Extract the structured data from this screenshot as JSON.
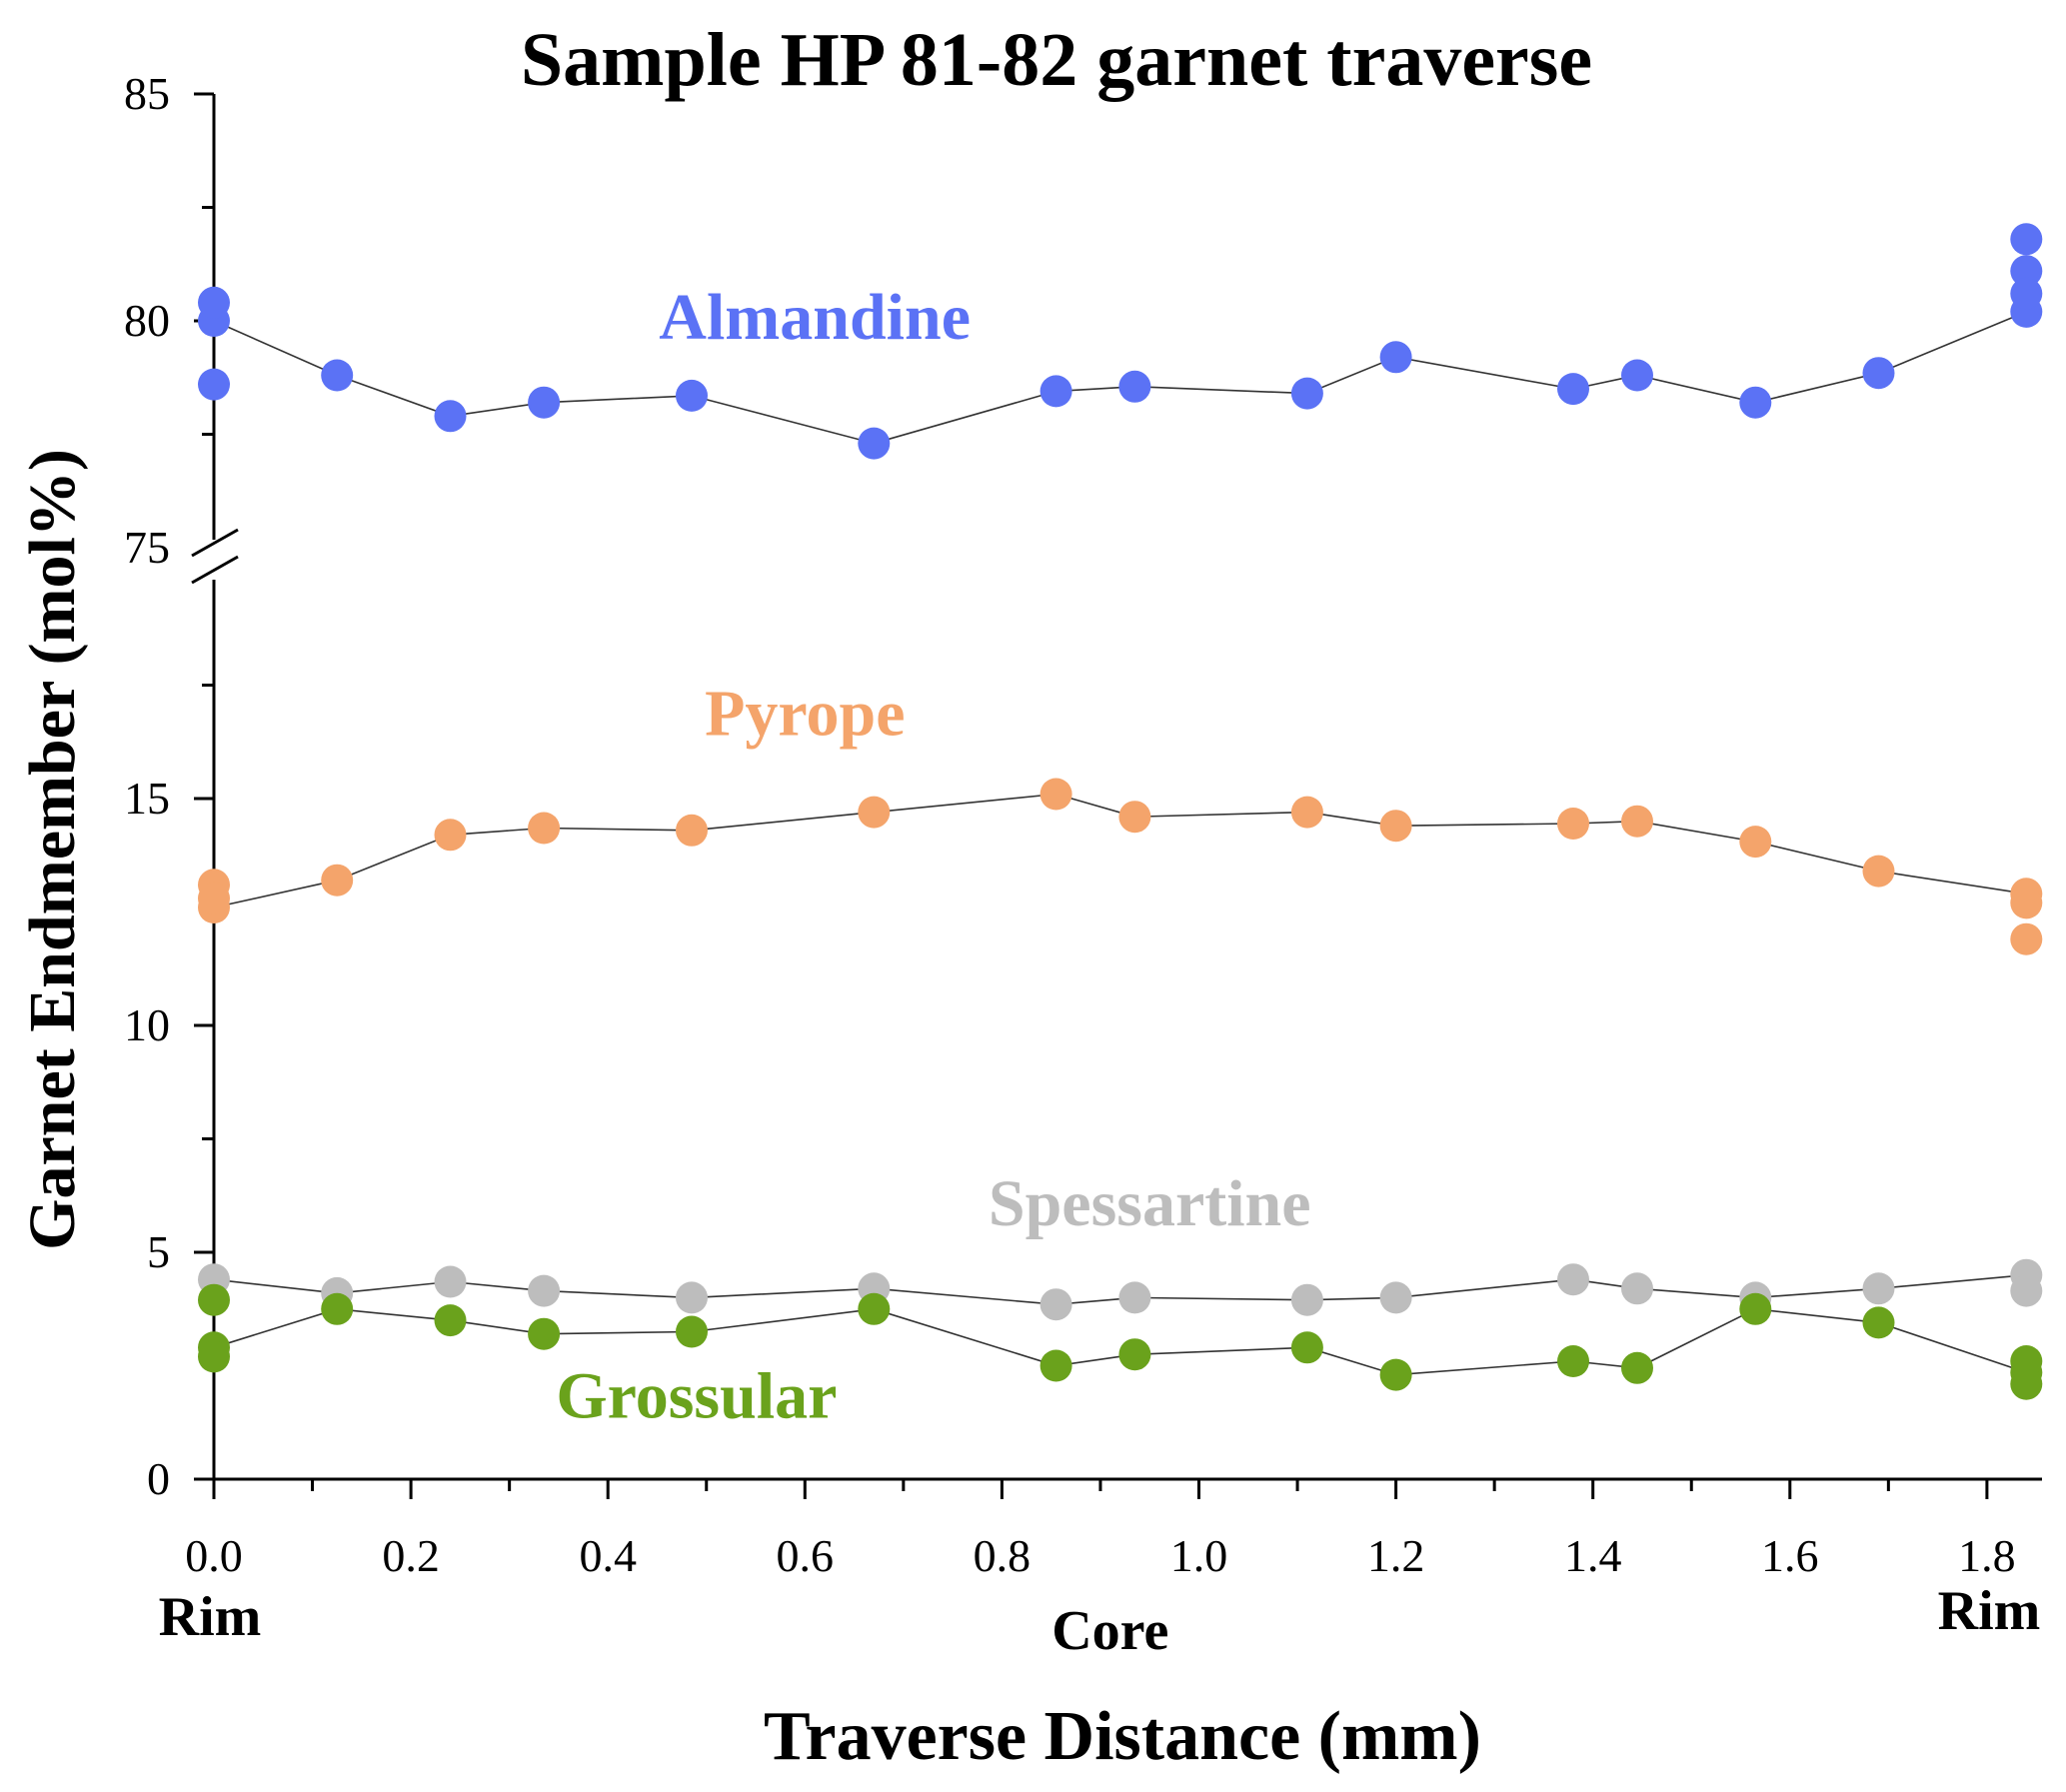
{
  "chart_data": {
    "type": "scatter",
    "title": "Sample HP 81-82 garnet traverse",
    "xlabel": "Traverse Distance (mm)",
    "ylabel": "Garnet Endmember (mol%)",
    "xlim": [
      0,
      1.85
    ],
    "x_ticks": [
      "0.0",
      "0.2",
      "0.4",
      "0.6",
      "0.8",
      "1.0",
      "1.2",
      "1.4",
      "1.6",
      "1.8"
    ],
    "y_axis_broken": true,
    "y_segments": [
      {
        "range": [
          0,
          19
        ],
        "ticks": [
          "0",
          "5",
          "10",
          "15"
        ]
      },
      {
        "range": [
          75,
          85
        ],
        "ticks": [
          "75",
          "80",
          "85"
        ]
      }
    ],
    "position_labels": [
      {
        "x": 0.0,
        "text": "Rim"
      },
      {
        "x": 0.91,
        "text": "Core"
      },
      {
        "x": 1.84,
        "text": "Rim"
      }
    ],
    "grid": false,
    "series": [
      {
        "name": "Almandine",
        "color": "#5b72f5",
        "label_at": [
          0.61,
          79.6
        ],
        "line": [
          [
            0.0,
            80.0
          ],
          [
            0.125,
            78.8
          ],
          [
            0.24,
            77.9
          ],
          [
            0.335,
            78.2
          ],
          [
            0.485,
            78.35
          ],
          [
            0.67,
            77.3
          ],
          [
            0.855,
            78.45
          ],
          [
            0.935,
            78.55
          ],
          [
            1.11,
            78.4
          ],
          [
            1.2,
            79.2
          ],
          [
            1.38,
            78.5
          ],
          [
            1.445,
            78.8
          ],
          [
            1.565,
            78.2
          ],
          [
            1.69,
            78.85
          ],
          [
            1.84,
            80.2
          ]
        ],
        "extra_points": [
          [
            0.0,
            80.4
          ],
          [
            0.0,
            78.6
          ],
          [
            1.84,
            81.8
          ],
          [
            1.84,
            81.1
          ],
          [
            1.84,
            80.6
          ]
        ]
      },
      {
        "name": "Pyrope",
        "color": "#f4a46b",
        "label_at": [
          0.6,
          16.4
        ],
        "line": [
          [
            0.0,
            12.6
          ],
          [
            0.125,
            13.2
          ],
          [
            0.24,
            14.2
          ],
          [
            0.335,
            14.35
          ],
          [
            0.485,
            14.3
          ],
          [
            0.67,
            14.7
          ],
          [
            0.855,
            15.1
          ],
          [
            0.935,
            14.6
          ],
          [
            1.11,
            14.7
          ],
          [
            1.2,
            14.4
          ],
          [
            1.38,
            14.45
          ],
          [
            1.445,
            14.5
          ],
          [
            1.565,
            14.05
          ],
          [
            1.69,
            13.4
          ],
          [
            1.84,
            12.9
          ]
        ],
        "extra_points": [
          [
            0.0,
            13.1
          ],
          [
            0.0,
            12.8
          ],
          [
            1.84,
            12.7
          ],
          [
            1.84,
            11.9
          ]
        ]
      },
      {
        "name": "Spessartine",
        "color": "#bdbdbd",
        "label_at": [
          0.95,
          5.6
        ],
        "line": [
          [
            0.0,
            4.4
          ],
          [
            0.125,
            4.1
          ],
          [
            0.24,
            4.35
          ],
          [
            0.335,
            4.15
          ],
          [
            0.485,
            4.0
          ],
          [
            0.67,
            4.2
          ],
          [
            0.855,
            3.85
          ],
          [
            0.935,
            4.0
          ],
          [
            1.11,
            3.95
          ],
          [
            1.2,
            4.0
          ],
          [
            1.38,
            4.4
          ],
          [
            1.445,
            4.2
          ],
          [
            1.565,
            4.0
          ],
          [
            1.69,
            4.2
          ],
          [
            1.84,
            4.5
          ]
        ],
        "extra_points": [
          [
            1.84,
            4.15
          ]
        ]
      },
      {
        "name": "Grossular",
        "color": "#6aa21c",
        "label_at": [
          0.49,
          1.35
        ],
        "line": [
          [
            0.0,
            2.9
          ],
          [
            0.125,
            3.75
          ],
          [
            0.24,
            3.5
          ],
          [
            0.335,
            3.2
          ],
          [
            0.485,
            3.25
          ],
          [
            0.67,
            3.75
          ],
          [
            0.855,
            2.5
          ],
          [
            0.935,
            2.75
          ],
          [
            1.11,
            2.9
          ],
          [
            1.2,
            2.3
          ],
          [
            1.38,
            2.6
          ],
          [
            1.445,
            2.45
          ],
          [
            1.565,
            3.75
          ],
          [
            1.69,
            3.45
          ],
          [
            1.84,
            2.35
          ]
        ],
        "extra_points": [
          [
            0.0,
            3.95
          ],
          [
            0.0,
            2.7
          ],
          [
            1.84,
            2.6
          ],
          [
            1.84,
            2.1
          ]
        ]
      }
    ]
  }
}
